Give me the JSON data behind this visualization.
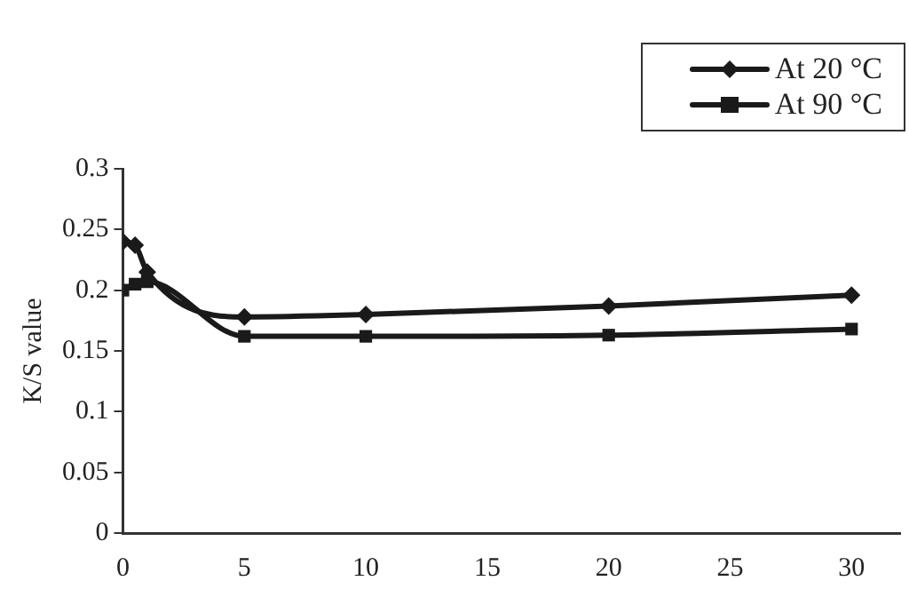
{
  "chart_data": {
    "type": "line",
    "ylabel": "K/S value",
    "x": [
      0,
      0.5,
      1,
      5,
      10,
      20,
      30
    ],
    "series": [
      {
        "name": "At 20 °C",
        "color": "#1a1a1a",
        "marker": "diamond",
        "values": [
          0.24,
          0.237,
          0.215,
          0.178,
          0.18,
          0.187,
          0.196
        ]
      },
      {
        "name": "At 90 °C",
        "color": "#1a1a1a",
        "marker": "square",
        "values": [
          0.2,
          0.205,
          0.207,
          0.162,
          0.162,
          0.163,
          0.168
        ]
      }
    ],
    "xlim": [
      0,
      32
    ],
    "xticks": [
      0,
      5,
      10,
      15,
      20,
      25,
      30
    ],
    "ylim": [
      0,
      0.3
    ],
    "yticks": [
      0,
      0.05,
      0.1,
      0.15,
      0.2,
      0.25,
      0.3
    ],
    "grid": false,
    "legend": "top right",
    "line_style": "solid"
  }
}
